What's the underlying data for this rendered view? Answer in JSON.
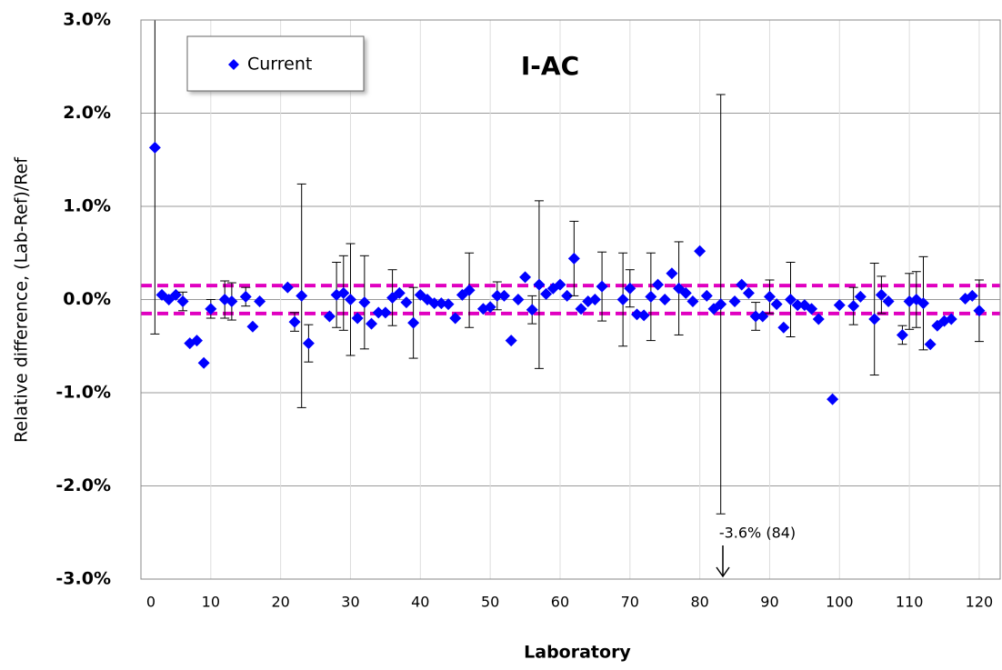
{
  "chart_data": {
    "type": "scatter",
    "title": "I-AC",
    "x_label": "Laboratory",
    "y_label": "Relative difference, (Lab-Ref)/Ref",
    "annotation": "-3.6% (84)",
    "series": [
      {
        "name": "Current",
        "color": "#0000ff",
        "x": [
          2,
          3,
          4,
          5,
          6,
          7,
          8,
          9,
          10,
          12,
          13,
          15,
          16,
          17,
          21,
          22,
          23,
          24,
          27,
          28,
          29,
          30,
          31,
          32,
          33,
          34,
          35,
          36,
          37,
          38,
          39,
          40,
          41,
          42,
          43,
          44,
          45,
          46,
          47,
          49,
          50,
          51,
          52,
          53,
          54,
          55,
          56,
          57,
          58,
          59,
          60,
          61,
          62,
          63,
          64,
          65,
          66,
          69,
          70,
          71,
          72,
          73,
          74,
          75,
          76,
          77,
          78,
          79,
          80,
          81,
          82,
          83,
          85,
          86,
          87,
          88,
          89,
          90,
          91,
          92,
          93,
          94,
          95,
          96,
          97,
          99,
          100,
          102,
          103,
          105,
          106,
          107,
          109,
          110,
          111,
          112,
          113,
          114,
          115,
          116,
          118,
          119,
          120
        ],
        "values": [
          1.63,
          0.05,
          0.0,
          0.05,
          -0.02,
          -0.47,
          -0.44,
          -0.68,
          -0.1,
          0.0,
          -0.02,
          0.03,
          -0.29,
          -0.02,
          0.13,
          -0.24,
          0.04,
          -0.47,
          -0.18,
          0.05,
          0.07,
          0.0,
          -0.2,
          -0.03,
          -0.26,
          -0.14,
          -0.14,
          0.02,
          0.07,
          -0.03,
          -0.25,
          0.05,
          0.0,
          -0.04,
          -0.04,
          -0.05,
          -0.2,
          0.05,
          0.1,
          -0.1,
          -0.08,
          0.04,
          0.04,
          -0.44,
          0.0,
          0.24,
          -0.11,
          0.16,
          0.06,
          0.12,
          0.16,
          0.04,
          0.44,
          -0.1,
          -0.02,
          0.0,
          0.14,
          0.0,
          0.12,
          -0.16,
          -0.17,
          0.03,
          0.16,
          0.0,
          0.28,
          0.12,
          0.07,
          -0.02,
          0.52,
          0.04,
          -0.1,
          -0.05,
          -0.02,
          0.16,
          0.07,
          -0.18,
          -0.18,
          0.03,
          -0.05,
          -0.3,
          0.0,
          -0.06,
          -0.06,
          -0.1,
          -0.21,
          -1.07,
          -0.06,
          -0.07,
          0.03,
          -0.21,
          0.05,
          -0.02,
          -0.38,
          -0.02,
          0.0,
          -0.04,
          -0.48,
          -0.28,
          -0.23,
          -0.21,
          0.01,
          0.04,
          -0.12
        ],
        "errors": [
          2.0,
          null,
          null,
          null,
          0.1,
          null,
          null,
          null,
          0.1,
          0.2,
          0.2,
          0.1,
          null,
          null,
          null,
          0.1,
          1.2,
          0.2,
          null,
          0.35,
          0.4,
          0.6,
          null,
          0.5,
          null,
          null,
          null,
          0.3,
          null,
          null,
          0.38,
          null,
          null,
          null,
          null,
          null,
          null,
          null,
          0.4,
          null,
          null,
          0.15,
          null,
          null,
          null,
          null,
          0.15,
          0.9,
          null,
          null,
          null,
          null,
          0.4,
          null,
          null,
          null,
          0.37,
          0.5,
          0.2,
          null,
          null,
          0.47,
          null,
          null,
          null,
          0.5,
          null,
          null,
          null,
          null,
          null,
          2.25,
          null,
          null,
          null,
          0.15,
          null,
          0.18,
          null,
          null,
          0.4,
          null,
          null,
          null,
          null,
          null,
          null,
          0.2,
          null,
          0.6,
          0.2,
          null,
          0.1,
          0.3,
          0.3,
          0.5,
          null,
          null,
          null,
          null,
          null,
          null,
          0.33
        ]
      }
    ],
    "limit_lines": [
      0.15,
      -0.15
    ],
    "limit_color": "#e000c0",
    "xlim": [
      0,
      123
    ],
    "ylim": [
      -3,
      3
    ],
    "xticks": [
      0,
      10,
      20,
      30,
      40,
      50,
      60,
      70,
      80,
      90,
      100,
      110,
      120
    ],
    "yticks": [
      {
        "value": -3,
        "label": "-3.0%"
      },
      {
        "value": -2,
        "label": "-2.0%"
      },
      {
        "value": -1,
        "label": "-1.0%"
      },
      {
        "value": 0,
        "label": "0.0%"
      },
      {
        "value": 1,
        "label": "1.0%"
      },
      {
        "value": 2,
        "label": "2.0%"
      },
      {
        "value": 3,
        "label": "3.0%"
      }
    ],
    "grid": true,
    "legend": "upper left"
  }
}
